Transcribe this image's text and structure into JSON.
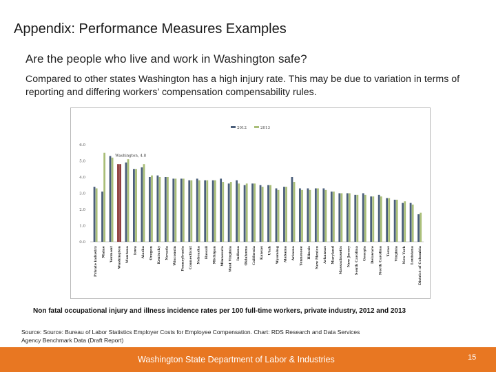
{
  "slide": {
    "title": "Appendix: Performance Measures Examples",
    "subheading": "Are the people who live and work in Washington safe?",
    "body": "Compared to other states Washington has a high injury rate. This may be due to variation in terms of reporting and differing workers’ compensation compensability rules.",
    "caption": "Non fatal occupational injury and illness incidence rates per 100 full-time workers, private industry, 2012 and 2013",
    "source": "Source: Source: Bureau of Labor Statistics Employer Costs for Employee Compensation. Chart: RDS Research and Data Services Agency Benchmark Data (Draft Report)"
  },
  "footer": {
    "text": "Washington State Department of Labor & Industries",
    "page_number": "15"
  },
  "colors": {
    "series_2012": "#4a5e7a",
    "series_2013": "#a9be78",
    "washington_highlight": "#8e3a3a",
    "footer": "#e87722"
  },
  "chart_data": {
    "type": "bar",
    "title": "",
    "xlabel": "",
    "ylabel": "",
    "ylim": [
      0,
      6
    ],
    "yticks": [
      "0.0",
      "1.0",
      "2.0",
      "3.0",
      "4.0",
      "5.0",
      "6.0"
    ],
    "legend_position": "top-center",
    "grid": false,
    "annotation": "Washington, 4.8",
    "categories": [
      "Private industry",
      "Maine",
      "Vermont",
      "Washington",
      "Montana",
      "Iowa",
      "Alaska",
      "Oregon",
      "Kentucky",
      "Nevada",
      "Wisconsin",
      "Pennsylvania",
      "Connecticut",
      "Nebraska",
      "Hawaii",
      "Michigan",
      "Minnesota",
      "West Virginia",
      "Indiana",
      "Oklahoma",
      "California",
      "Kansas",
      "Utah",
      "Wyoming",
      "Alabama",
      "Arizona",
      "Tennessee",
      "Illinois",
      "New Mexico",
      "Arkansas",
      "Maryland",
      "Massachusetts",
      "New Jersey",
      "South Carolina",
      "Georgia",
      "Delaware",
      "North Carolina",
      "Texas",
      "Virginia",
      "New York",
      "Louisiana",
      "District of Columbia"
    ],
    "series": [
      {
        "name": "2012",
        "values": [
          3.4,
          3.1,
          5.3,
          4.8,
          4.9,
          4.5,
          4.6,
          4.0,
          4.1,
          4.0,
          3.9,
          3.9,
          3.8,
          3.9,
          3.8,
          3.8,
          3.9,
          3.6,
          3.8,
          3.5,
          3.6,
          3.5,
          3.5,
          3.3,
          3.4,
          4.0,
          3.3,
          3.3,
          3.3,
          3.3,
          3.1,
          3.0,
          3.0,
          2.9,
          3.0,
          2.8,
          2.9,
          2.7,
          2.6,
          2.4,
          2.4,
          1.7
        ]
      },
      {
        "name": "2013",
        "values": [
          3.3,
          5.5,
          5.2,
          4.8,
          5.1,
          4.5,
          4.8,
          4.1,
          4.0,
          4.0,
          3.9,
          3.9,
          3.8,
          3.8,
          3.8,
          3.8,
          3.7,
          3.7,
          3.6,
          3.6,
          3.6,
          3.4,
          3.5,
          3.2,
          3.4,
          3.7,
          3.2,
          3.2,
          3.3,
          3.2,
          3.1,
          3.0,
          3.0,
          2.9,
          2.9,
          2.8,
          2.8,
          2.7,
          2.6,
          2.5,
          2.3,
          1.8
        ]
      }
    ]
  }
}
